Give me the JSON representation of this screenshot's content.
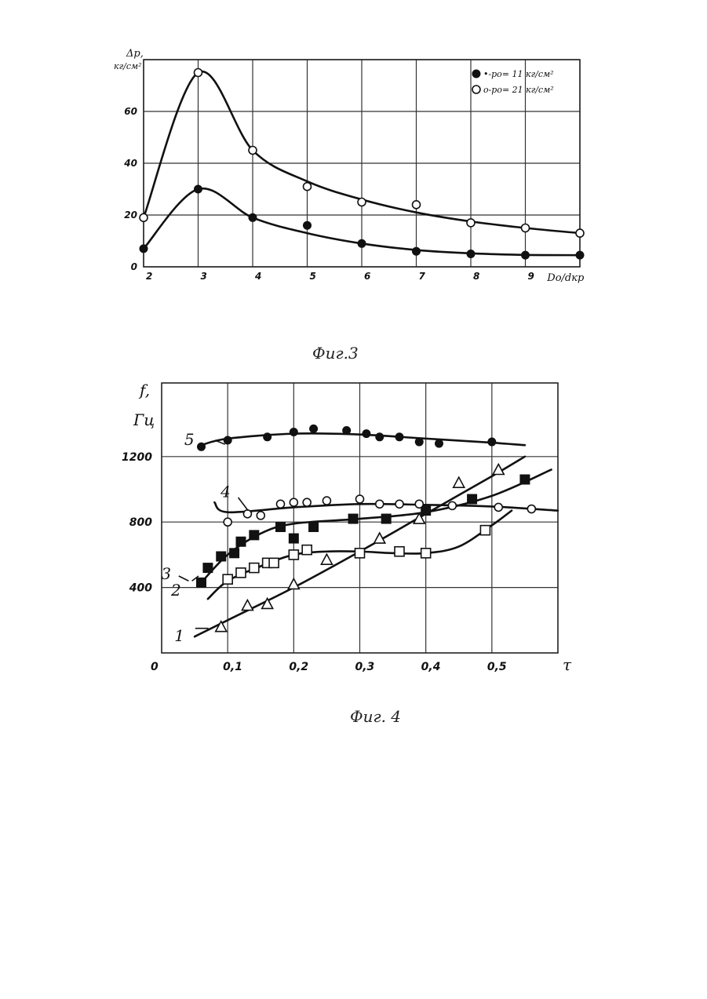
{
  "chart_data": [
    {
      "type": "scatter",
      "title": "",
      "caption": "Фиг.3",
      "xlabel": "Dо/dкр",
      "ylabel_line1": "Δp,",
      "ylabel_line2": "кг/см²",
      "xlim": [
        2,
        10
      ],
      "ylim": [
        0,
        80
      ],
      "x_ticks": [
        "2",
        "3",
        "4",
        "5",
        "6",
        "7",
        "8",
        "9"
      ],
      "y_ticks": [
        "0",
        "20",
        "40",
        "60"
      ],
      "grid": true,
      "legend_position": "top-right",
      "legend": [
        {
          "marker": "filled-circle",
          "text": "•-pо= 11 кг/см²"
        },
        {
          "marker": "open-circle",
          "text": "о-pо= 21 кг/см²"
        }
      ],
      "series": [
        {
          "name": "pо= 11 кг/см²",
          "marker": "filled-circle",
          "points": [
            [
              2,
              7
            ],
            [
              3,
              30
            ],
            [
              4,
              19
            ],
            [
              5,
              16
            ],
            [
              6,
              9
            ],
            [
              7,
              6
            ],
            [
              8,
              5
            ],
            [
              9,
              4.5
            ],
            [
              10,
              4.5
            ]
          ],
          "curve": [
            [
              2,
              7
            ],
            [
              3,
              30
            ],
            [
              4,
              19
            ],
            [
              5,
              13
            ],
            [
              6,
              9
            ],
            [
              7,
              6.5
            ],
            [
              8,
              5.2
            ],
            [
              9,
              4.6
            ],
            [
              10,
              4.5
            ]
          ]
        },
        {
          "name": "pо= 21 кг/см²",
          "marker": "open-circle",
          "points": [
            [
              2,
              19
            ],
            [
              3,
              75
            ],
            [
              4,
              45
            ],
            [
              5,
              31
            ],
            [
              6,
              25
            ],
            [
              7,
              24
            ],
            [
              8,
              17
            ],
            [
              9,
              15
            ],
            [
              10,
              13
            ]
          ],
          "curve": [
            [
              2,
              19
            ],
            [
              3,
              75
            ],
            [
              4,
              45
            ],
            [
              5,
              33
            ],
            [
              6,
              26
            ],
            [
              7,
              21
            ],
            [
              8,
              17.5
            ],
            [
              9,
              15
            ],
            [
              10,
              13
            ]
          ]
        }
      ]
    },
    {
      "type": "scatter",
      "title": "",
      "caption": "Фиг. 4",
      "xlabel": "τ",
      "ylabel_line1": "f,",
      "ylabel_line2": "Гц",
      "xlim": [
        0,
        0.6
      ],
      "ylim": [
        0,
        1650
      ],
      "x_ticks": [
        "0",
        "0,1",
        "0,2",
        "0,3",
        "0,4",
        "0,5"
      ],
      "y_ticks": [
        "400",
        "800",
        "1200"
      ],
      "grid": true,
      "series": [
        {
          "name": "1",
          "marker": "open-triangle",
          "points": [
            [
              0.09,
              160
            ],
            [
              0.13,
              290
            ],
            [
              0.16,
              300
            ],
            [
              0.2,
              420
            ],
            [
              0.25,
              570
            ],
            [
              0.33,
              700
            ],
            [
              0.39,
              820
            ],
            [
              0.45,
              1040
            ],
            [
              0.51,
              1120
            ]
          ],
          "curve": [
            [
              0.05,
              100
            ],
            [
              0.1,
              200
            ],
            [
              0.2,
              400
            ],
            [
              0.3,
              620
            ],
            [
              0.4,
              850
            ],
            [
              0.5,
              1080
            ],
            [
              0.55,
              1200
            ]
          ]
        },
        {
          "name": "2",
          "marker": "open-square",
          "points": [
            [
              0.1,
              450
            ],
            [
              0.12,
              490
            ],
            [
              0.14,
              520
            ],
            [
              0.16,
              550
            ],
            [
              0.17,
              550
            ],
            [
              0.2,
              600
            ],
            [
              0.22,
              630
            ],
            [
              0.3,
              610
            ],
            [
              0.36,
              620
            ],
            [
              0.4,
              610
            ],
            [
              0.49,
              750
            ]
          ],
          "curve": [
            [
              0.07,
              330
            ],
            [
              0.1,
              440
            ],
            [
              0.15,
              530
            ],
            [
              0.2,
              600
            ],
            [
              0.25,
              620
            ],
            [
              0.3,
              620
            ],
            [
              0.35,
              610
            ],
            [
              0.4,
              610
            ],
            [
              0.45,
              650
            ],
            [
              0.5,
              780
            ],
            [
              0.53,
              870
            ]
          ]
        },
        {
          "name": "3",
          "marker": "filled-square",
          "points": [
            [
              0.06,
              430
            ],
            [
              0.07,
              520
            ],
            [
              0.09,
              590
            ],
            [
              0.11,
              610
            ],
            [
              0.12,
              680
            ],
            [
              0.14,
              720
            ],
            [
              0.18,
              770
            ],
            [
              0.2,
              700
            ],
            [
              0.23,
              770
            ],
            [
              0.29,
              820
            ],
            [
              0.34,
              820
            ],
            [
              0.4,
              870
            ],
            [
              0.47,
              940
            ],
            [
              0.55,
              1060
            ]
          ],
          "curve": [
            [
              0.06,
              430
            ],
            [
              0.1,
              600
            ],
            [
              0.15,
              730
            ],
            [
              0.2,
              790
            ],
            [
              0.3,
              820
            ],
            [
              0.4,
              860
            ],
            [
              0.5,
              960
            ],
            [
              0.59,
              1120
            ]
          ]
        },
        {
          "name": "4",
          "marker": "open-circle",
          "points": [
            [
              0.1,
              800
            ],
            [
              0.13,
              850
            ],
            [
              0.15,
              840
            ],
            [
              0.18,
              910
            ],
            [
              0.2,
              920
            ],
            [
              0.22,
              920
            ],
            [
              0.25,
              930
            ],
            [
              0.3,
              940
            ],
            [
              0.33,
              910
            ],
            [
              0.36,
              910
            ],
            [
              0.39,
              910
            ],
            [
              0.44,
              900
            ],
            [
              0.51,
              890
            ],
            [
              0.56,
              880
            ]
          ],
          "curve": [
            [
              0.08,
              920
            ],
            [
              0.1,
              860
            ],
            [
              0.2,
              890
            ],
            [
              0.3,
              910
            ],
            [
              0.4,
              905
            ],
            [
              0.5,
              895
            ],
            [
              0.6,
              870
            ]
          ]
        },
        {
          "name": "5",
          "marker": "filled-circle",
          "points": [
            [
              0.06,
              1260
            ],
            [
              0.1,
              1300
            ],
            [
              0.16,
              1320
            ],
            [
              0.2,
              1350
            ],
            [
              0.23,
              1370
            ],
            [
              0.28,
              1360
            ],
            [
              0.31,
              1340
            ],
            [
              0.33,
              1320
            ],
            [
              0.36,
              1320
            ],
            [
              0.39,
              1290
            ],
            [
              0.42,
              1280
            ],
            [
              0.5,
              1290
            ]
          ],
          "curve": [
            [
              0.06,
              1270
            ],
            [
              0.1,
              1310
            ],
            [
              0.2,
              1340
            ],
            [
              0.3,
              1335
            ],
            [
              0.4,
              1310
            ],
            [
              0.5,
              1285
            ],
            [
              0.55,
              1270
            ]
          ]
        }
      ]
    }
  ]
}
